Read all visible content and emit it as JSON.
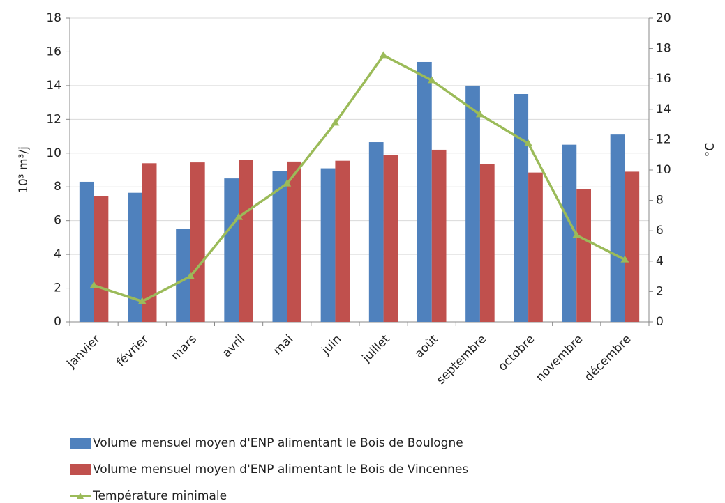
{
  "chart_data": {
    "type": "bar",
    "ylabel": "10³ m³/j",
    "y2label": "°C",
    "categories": [
      "janvier",
      "février",
      "mars",
      "avril",
      "mai",
      "juin",
      "juillet",
      "août",
      "septembre",
      "octobre",
      "novembre",
      "décembre"
    ],
    "series": [
      {
        "name": "Volume mensuel moyen d'ENP alimentant le Bois de Boulogne",
        "type": "bar",
        "color": "#4f81bd",
        "values": [
          8.3,
          7.65,
          5.5,
          8.5,
          8.95,
          9.1,
          10.65,
          15.4,
          14.0,
          13.5,
          10.5,
          11.1
        ]
      },
      {
        "name": "Volume mensuel moyen d'ENP alimentant le Bois de Vincennes",
        "type": "bar",
        "color": "#c0504d",
        "values": [
          7.45,
          9.4,
          9.45,
          9.6,
          9.5,
          9.55,
          9.9,
          10.2,
          9.35,
          8.85,
          7.85,
          8.9
        ]
      },
      {
        "name": "Température minimale",
        "type": "line",
        "axis": "y2",
        "color": "#9bbb59",
        "values": [
          2.4,
          1.35,
          3.0,
          6.9,
          9.1,
          13.1,
          17.55,
          15.9,
          13.65,
          11.75,
          5.7,
          4.1
        ]
      }
    ],
    "ylim": [
      0,
      18
    ],
    "yticks": [
      0,
      2,
      4,
      6,
      8,
      10,
      12,
      14,
      16,
      18
    ],
    "y2lim": [
      0,
      20
    ],
    "y2ticks": [
      0,
      2,
      4,
      6,
      8,
      10,
      12,
      14,
      16,
      18,
      20
    ],
    "grid": true
  }
}
